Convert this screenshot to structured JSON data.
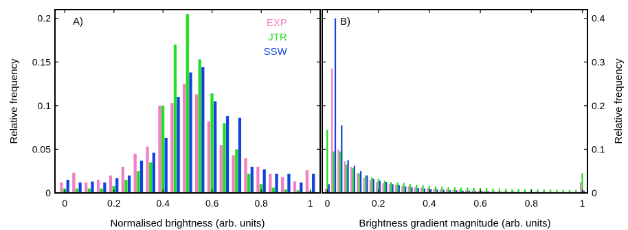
{
  "chart_data": [
    {
      "type": "bar",
      "panel_label": "A)",
      "xlabel": "Normalised brightness (arb. units)",
      "ylabel": "Relative frequency",
      "ylabel_side": "left",
      "xlim": [
        -0.04,
        1.04
      ],
      "ylim": [
        0,
        0.21
      ],
      "xticks": [
        0,
        0.2,
        0.4,
        0.6,
        0.8,
        1
      ],
      "xtick_labels": [
        "0",
        "0.2",
        "0.4",
        "0.6",
        "0.8",
        "1"
      ],
      "yticks": [
        0,
        0.05,
        0.1,
        0.15,
        0.2
      ],
      "ytick_labels": [
        "0",
        "0.05",
        "0.1",
        "0.15",
        "0.2"
      ],
      "legend_position": "top-right",
      "categories": [
        0,
        0.05,
        0.1,
        0.15,
        0.2,
        0.25,
        0.3,
        0.35,
        0.4,
        0.45,
        0.5,
        0.55,
        0.6,
        0.65,
        0.7,
        0.75,
        0.8,
        0.85,
        0.9,
        0.95,
        1
      ],
      "series": [
        {
          "name": "EXP",
          "color": "#f080c0",
          "values": [
            0.012,
            0.023,
            0.012,
            0.015,
            0.02,
            0.03,
            0.045,
            0.053,
            0.1,
            0.103,
            0.125,
            0.113,
            0.082,
            0.055,
            0.043,
            0.04,
            0.03,
            0.022,
            0.018,
            0.013,
            0.026
          ]
        },
        {
          "name": "JTR",
          "color": "#22dd22",
          "values": [
            0.005,
            0.005,
            0.005,
            0.005,
            0.008,
            0.015,
            0.025,
            0.035,
            0.1,
            0.17,
            0.205,
            0.153,
            0.114,
            0.08,
            0.05,
            0.022,
            0.01,
            0.006,
            0.004,
            0.003,
            0.002
          ]
        },
        {
          "name": "SSW",
          "color": "#1144dd",
          "values": [
            0.015,
            0.012,
            0.013,
            0.012,
            0.017,
            0.02,
            0.037,
            0.046,
            0.063,
            0.11,
            0.138,
            0.144,
            0.105,
            0.088,
            0.086,
            0.03,
            0.027,
            0.022,
            0.022,
            0.012,
            0.022
          ]
        }
      ]
    },
    {
      "type": "bar",
      "panel_label": "B)",
      "xlabel": "Brightness gradient magnitude (arb. units)",
      "ylabel": "Relative frequency",
      "ylabel_side": "right",
      "xlim": [
        -0.02,
        1.02
      ],
      "ylim": [
        0,
        0.42
      ],
      "xticks": [
        0,
        0.2,
        0.4,
        0.6,
        0.8,
        1
      ],
      "xtick_labels": [
        "0",
        "0.2",
        "0.4",
        "0.6",
        "0.8",
        "1"
      ],
      "yticks": [
        0,
        0.1,
        0.2,
        0.3,
        0.4
      ],
      "ytick_labels": [
        "0",
        "0.1",
        "0.2",
        "0.3",
        "0.4"
      ],
      "categories": [
        0,
        0.025,
        0.05,
        0.075,
        0.1,
        0.125,
        0.15,
        0.175,
        0.2,
        0.225,
        0.25,
        0.275,
        0.3,
        0.325,
        0.35,
        0.375,
        0.4,
        0.425,
        0.45,
        0.475,
        0.5,
        0.525,
        0.55,
        0.575,
        0.6,
        0.625,
        0.65,
        0.675,
        0.7,
        0.725,
        0.75,
        0.775,
        0.8,
        0.825,
        0.85,
        0.875,
        0.9,
        0.925,
        0.95,
        0.975,
        1
      ],
      "series": [
        {
          "name": "EXP",
          "color": "#f080c0",
          "values": [
            0.01,
            0.285,
            0.1,
            0.072,
            0.06,
            0.045,
            0.035,
            0.03,
            0.025,
            0.022,
            0.02,
            0.018,
            0.016,
            0.015,
            0.013,
            0.012,
            0.011,
            0.01,
            0.009,
            0.008,
            0.007,
            0.007,
            0.006,
            0.006,
            0.005,
            0.005,
            0.004,
            0.004,
            0.004,
            0.003,
            0.003,
            0.003,
            0.003,
            0.003,
            0.003,
            0.002,
            0.002,
            0.002,
            0.002,
            0.002,
            0.025
          ]
        },
        {
          "name": "JTR",
          "color": "#22dd22",
          "values": [
            0.145,
            0.095,
            0.095,
            0.065,
            0.057,
            0.045,
            0.04,
            0.036,
            0.032,
            0.028,
            0.025,
            0.024,
            0.023,
            0.02,
            0.019,
            0.018,
            0.016,
            0.015,
            0.014,
            0.013,
            0.013,
            0.012,
            0.012,
            0.011,
            0.011,
            0.011,
            0.01,
            0.01,
            0.01,
            0.009,
            0.009,
            0.009,
            0.009,
            0.008,
            0.008,
            0.008,
            0.007,
            0.007,
            0.007,
            0.007,
            0.045
          ]
        },
        {
          "name": "SSW",
          "color": "#1144dd",
          "values": [
            0.02,
            0.4,
            0.155,
            0.075,
            0.062,
            0.05,
            0.04,
            0.032,
            0.028,
            0.025,
            0.02,
            0.018,
            0.015,
            0.013,
            0.011,
            0.01,
            0.009,
            0.008,
            0.007,
            0.006,
            0.006,
            0.005,
            0.005,
            0.004,
            0.004,
            0.004,
            0.003,
            0.003,
            0.003,
            0.003,
            0.002,
            0.002,
            0.002,
            0.002,
            0.002,
            0.002,
            0.002,
            0.002,
            0.002,
            0.002,
            0.005
          ]
        }
      ]
    }
  ]
}
